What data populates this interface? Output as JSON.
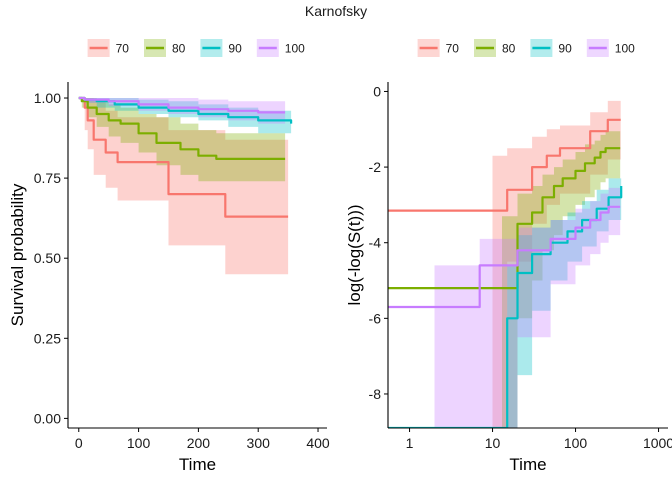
{
  "title": "Karnofsky",
  "colors": {
    "70": "#F8766D",
    "80": "#7CAE00",
    "90": "#00BFC4",
    "100": "#C77CFF"
  },
  "chart_data": [
    {
      "type": "line",
      "subtype": "step",
      "xlabel": "Time",
      "ylabel": "Survival probability",
      "xlim": [
        -18,
        415
      ],
      "ylim": [
        -0.03,
        1.05
      ],
      "xticks": [
        0,
        100,
        200,
        300,
        400
      ],
      "yticks": [
        0.0,
        0.25,
        0.5,
        0.75,
        1.0
      ],
      "ytick_labels": [
        "0.00",
        "0.25",
        "0.50",
        "0.75",
        "1.00"
      ],
      "grid": false,
      "legend_position": "top",
      "legend": [
        "70",
        "80",
        "90",
        "100"
      ],
      "series": [
        {
          "name": "70",
          "x": [
            0,
            10,
            15,
            25,
            45,
            65,
            150,
            245,
            350
          ],
          "y": [
            1.0,
            0.97,
            0.93,
            0.87,
            0.83,
            0.8,
            0.7,
            0.63,
            0.63
          ],
          "lower": [
            1.0,
            0.9,
            0.84,
            0.76,
            0.72,
            0.68,
            0.54,
            0.45,
            0.45
          ],
          "upper": [
            1.0,
            1.0,
            1.0,
            0.99,
            0.96,
            0.94,
            0.9,
            0.87,
            0.87
          ]
        },
        {
          "name": "80",
          "x": [
            0,
            5,
            15,
            30,
            50,
            70,
            100,
            130,
            170,
            200,
            230,
            345
          ],
          "y": [
            1.0,
            0.99,
            0.97,
            0.95,
            0.93,
            0.92,
            0.89,
            0.86,
            0.84,
            0.82,
            0.81,
            0.81
          ],
          "lower": [
            1.0,
            0.97,
            0.94,
            0.91,
            0.88,
            0.86,
            0.83,
            0.79,
            0.76,
            0.74,
            0.74,
            0.74
          ],
          "upper": [
            1.0,
            1.0,
            1.0,
            0.99,
            0.98,
            0.97,
            0.95,
            0.94,
            0.92,
            0.9,
            0.89,
            0.89
          ]
        },
        {
          "name": "90",
          "x": [
            0,
            10,
            30,
            60,
            100,
            150,
            200,
            250,
            300,
            355
          ],
          "y": [
            1.0,
            0.995,
            0.99,
            0.98,
            0.97,
            0.96,
            0.95,
            0.94,
            0.93,
            0.92
          ],
          "lower": [
            1.0,
            0.985,
            0.97,
            0.96,
            0.95,
            0.94,
            0.93,
            0.91,
            0.89,
            0.89
          ],
          "upper": [
            1.0,
            1.0,
            1.0,
            1.0,
            0.995,
            0.99,
            0.98,
            0.97,
            0.96,
            0.95
          ]
        },
        {
          "name": "100",
          "x": [
            0,
            10,
            50,
            100,
            150,
            200,
            250,
            300,
            345
          ],
          "y": [
            1.0,
            0.995,
            0.99,
            0.98,
            0.97,
            0.965,
            0.96,
            0.955,
            0.955
          ],
          "lower": [
            1.0,
            0.985,
            0.975,
            0.96,
            0.95,
            0.94,
            0.93,
            0.92,
            0.92
          ],
          "upper": [
            1.0,
            1.0,
            1.0,
            1.0,
            1.0,
            0.995,
            0.99,
            0.99,
            0.99
          ]
        }
      ]
    },
    {
      "type": "line",
      "subtype": "step",
      "xlabel": "Time",
      "ylabel": "log(-log(S(t)))",
      "xscale": "log",
      "xlim": [
        0.55,
        1300
      ],
      "ylim": [
        -8.9,
        0.25
      ],
      "xticks": [
        1,
        10,
        100,
        1000
      ],
      "yticks": [
        0,
        -2,
        -4,
        -6,
        -8
      ],
      "grid": false,
      "legend_position": "top",
      "legend": [
        "70",
        "80",
        "90",
        "100"
      ],
      "series": [
        {
          "name": "70",
          "x": [
            10,
            15,
            30,
            45,
            65,
            150,
            245,
            350
          ],
          "y": [
            -3.15,
            -2.6,
            -2.0,
            -1.7,
            -1.5,
            -1.05,
            -0.75,
            -0.75
          ],
          "lower": [
            -8.9,
            -4.5,
            -3.5,
            -3.0,
            -2.7,
            -2.2,
            -1.8,
            -1.8
          ],
          "upper": [
            -1.7,
            -1.5,
            -1.2,
            -1.0,
            -0.9,
            -0.55,
            -0.25,
            -0.25
          ]
        },
        {
          "name": "80",
          "x": [
            13,
            20,
            30,
            40,
            55,
            70,
            100,
            130,
            170,
            200,
            230,
            345
          ],
          "y": [
            -5.2,
            -3.5,
            -3.2,
            -2.8,
            -2.5,
            -2.3,
            -2.1,
            -1.9,
            -1.75,
            -1.6,
            -1.5,
            -1.5
          ],
          "lower": [
            -8.9,
            -6.0,
            -5.0,
            -4.2,
            -3.8,
            -3.3,
            -3.0,
            -2.8,
            -2.6,
            -2.4,
            -2.3,
            -2.3
          ],
          "upper": [
            -3.3,
            -2.7,
            -2.5,
            -2.2,
            -2.0,
            -1.8,
            -1.6,
            -1.4,
            -1.3,
            -1.15,
            -1.05,
            -1.05
          ]
        },
        {
          "name": "90",
          "x": [
            13,
            15,
            20,
            30,
            50,
            80,
            120,
            180,
            250,
            355
          ],
          "y": [
            -8.9,
            -6.0,
            -4.8,
            -4.3,
            -4.0,
            -3.7,
            -3.4,
            -3.1,
            -2.8,
            -2.5
          ],
          "lower": [
            -8.9,
            -8.9,
            -7.5,
            -5.8,
            -5.0,
            -4.5,
            -4.1,
            -3.7,
            -3.4,
            -3.1
          ],
          "upper": [
            -8.9,
            -4.6,
            -3.8,
            -3.6,
            -3.4,
            -3.2,
            -2.9,
            -2.6,
            -2.3,
            -2.05
          ]
        },
        {
          "name": "100",
          "x": [
            2,
            7,
            20,
            50,
            100,
            150,
            200,
            250,
            345
          ],
          "y": [
            -5.7,
            -4.6,
            -4.2,
            -3.9,
            -3.6,
            -3.4,
            -3.2,
            -3.05,
            -3.05
          ],
          "lower": [
            -8.9,
            -8.9,
            -6.5,
            -5.1,
            -4.6,
            -4.3,
            -4.0,
            -3.8,
            -3.8
          ],
          "upper": [
            -4.6,
            -3.9,
            -3.6,
            -3.4,
            -3.1,
            -2.9,
            -2.7,
            -2.55,
            -2.55
          ]
        }
      ]
    }
  ]
}
